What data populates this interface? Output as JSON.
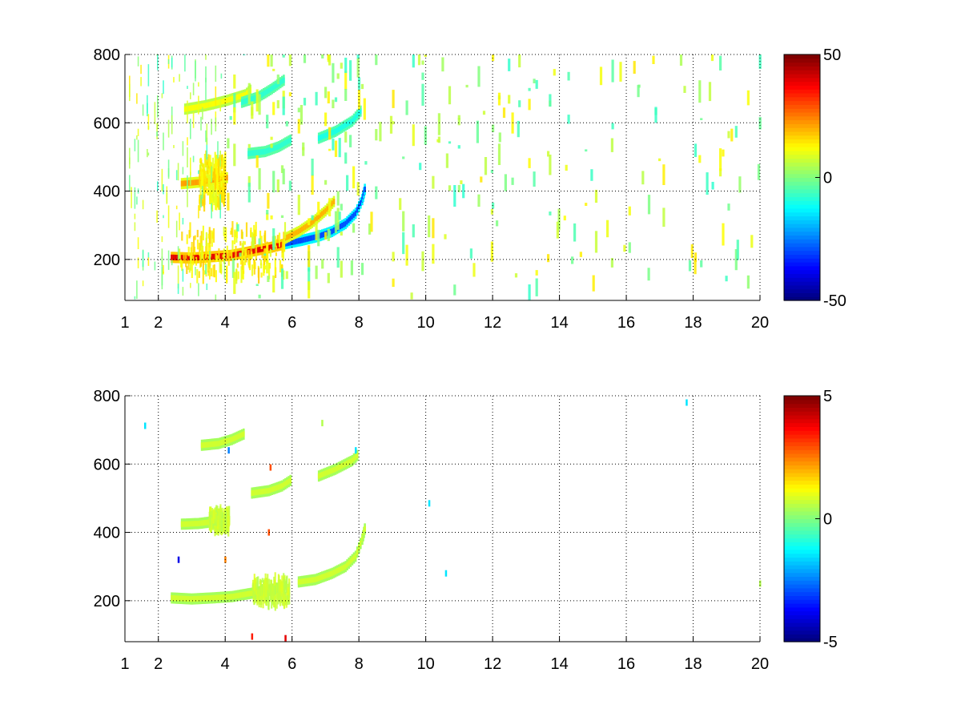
{
  "chart_data": [
    {
      "type": "heatmap",
      "title": "",
      "xlabel": "",
      "ylabel": "",
      "xlim": [
        1,
        20
      ],
      "ylim": [
        80,
        800
      ],
      "x_ticks": [
        1,
        2,
        4,
        6,
        8,
        10,
        12,
        14,
        16,
        18,
        20
      ],
      "x_tick_labels": [
        "1",
        "2",
        "4",
        "6",
        "8",
        "10",
        "12",
        "14",
        "16",
        "18",
        "20"
      ],
      "y_ticks": [
        200,
        400,
        600,
        800
      ],
      "y_tick_labels": [
        "200",
        "400",
        "600",
        "800"
      ],
      "grid": true,
      "colormap": "jet",
      "colorbar": {
        "range": [
          -50,
          50
        ],
        "ticks": [
          50,
          0,
          -50
        ],
        "tick_labels": [
          "50",
          "0",
          "-50"
        ]
      },
      "features": [
        {
          "kind": "curve",
          "value": 40,
          "points": [
            [
              2.4,
              206
            ],
            [
              3.0,
              204
            ],
            [
              3.6,
              208
            ],
            [
              4.2,
              212
            ],
            [
              4.8,
              224
            ],
            [
              5.4,
              236
            ],
            [
              5.8,
              246
            ]
          ]
        },
        {
          "kind": "curve",
          "value": -30,
          "points": [
            [
              5.8,
              246
            ],
            [
              6.3,
              256
            ],
            [
              6.8,
              268
            ],
            [
              7.2,
              282
            ],
            [
              7.6,
              305
            ],
            [
              7.9,
              335
            ],
            [
              8.1,
              375
            ],
            [
              8.2,
              415
            ]
          ]
        },
        {
          "kind": "curve",
          "value": 20,
          "points": [
            [
              5.8,
              262
            ],
            [
              6.2,
              282
            ],
            [
              6.6,
              308
            ],
            [
              7.0,
              342
            ],
            [
              7.3,
              375
            ]
          ]
        },
        {
          "kind": "curve",
          "value": 22,
          "points": [
            [
              2.7,
              422
            ],
            [
              3.2,
              426
            ],
            [
              3.7,
              434
            ],
            [
              4.1,
              440
            ]
          ]
        },
        {
          "kind": "curve",
          "value": -8,
          "points": [
            [
              4.7,
              510
            ],
            [
              5.2,
              516
            ],
            [
              5.6,
              530
            ],
            [
              6.0,
              552
            ]
          ]
        },
        {
          "kind": "curve",
          "value": -10,
          "points": [
            [
              6.8,
              555
            ],
            [
              7.3,
              575
            ],
            [
              7.8,
              605
            ],
            [
              8.1,
              640
            ]
          ]
        },
        {
          "kind": "curve",
          "value": 12,
          "points": [
            [
              2.8,
              640
            ],
            [
              3.4,
              650
            ],
            [
              4.0,
              664
            ],
            [
              4.6,
              682
            ],
            [
              4.8,
              700
            ]
          ]
        },
        {
          "kind": "curve",
          "value": -8,
          "points": [
            [
              4.5,
              660
            ],
            [
              5.0,
              676
            ],
            [
              5.4,
              700
            ],
            [
              5.8,
              728
            ]
          ]
        },
        {
          "kind": "blob",
          "value": 15,
          "x": [
            2.6,
            5.8
          ],
          "y": [
            150,
            290
          ]
        },
        {
          "kind": "blob",
          "value": 15,
          "x": [
            3.2,
            4.0
          ],
          "y": [
            360,
            500
          ]
        },
        {
          "kind": "noise",
          "value_range": [
            -20,
            15
          ],
          "x": [
            1,
            20
          ],
          "y": [
            80,
            800
          ]
        }
      ]
    },
    {
      "type": "heatmap",
      "title": "",
      "xlabel": "",
      "ylabel": "",
      "xlim": [
        1,
        20
      ],
      "ylim": [
        80,
        800
      ],
      "x_ticks": [
        1,
        2,
        4,
        6,
        8,
        10,
        12,
        14,
        16,
        18,
        20
      ],
      "x_tick_labels": [
        "1",
        "2",
        "4",
        "6",
        "8",
        "10",
        "12",
        "14",
        "16",
        "18",
        "20"
      ],
      "y_ticks": [
        200,
        400,
        600,
        800
      ],
      "y_tick_labels": [
        "200",
        "400",
        "600",
        "800"
      ],
      "grid": true,
      "colormap": "jet",
      "colorbar": {
        "range": [
          -5,
          5
        ],
        "ticks": [
          5,
          0,
          -5
        ],
        "tick_labels": [
          "5",
          "0",
          "-5"
        ]
      },
      "features": [
        {
          "kind": "curve",
          "value": 0.8,
          "points": [
            [
              2.4,
              208
            ],
            [
              3.0,
              205
            ],
            [
              3.6,
              208
            ],
            [
              4.2,
              212
            ],
            [
              4.8,
              222
            ],
            [
              5.4,
              232
            ],
            [
              5.8,
              244
            ]
          ]
        },
        {
          "kind": "curve",
          "value": 0.8,
          "points": [
            [
              6.2,
              255
            ],
            [
              6.7,
              262
            ],
            [
              7.2,
              280
            ],
            [
              7.6,
              300
            ],
            [
              7.9,
              330
            ],
            [
              8.1,
              380
            ],
            [
              8.2,
              420
            ]
          ]
        },
        {
          "kind": "curve",
          "value": 0.8,
          "points": [
            [
              2.7,
              424
            ],
            [
              3.2,
              426
            ],
            [
              3.7,
              432
            ],
            [
              4.1,
              438
            ]
          ]
        },
        {
          "kind": "curve",
          "value": 0.8,
          "points": [
            [
              4.8,
              515
            ],
            [
              5.3,
              522
            ],
            [
              5.7,
              536
            ],
            [
              6.0,
              555
            ]
          ]
        },
        {
          "kind": "curve",
          "value": 0.8,
          "points": [
            [
              6.8,
              565
            ],
            [
              7.3,
              585
            ],
            [
              7.8,
              610
            ],
            [
              8.0,
              630
            ]
          ]
        },
        {
          "kind": "curve",
          "value": 0.8,
          "points": [
            [
              3.3,
              655
            ],
            [
              3.8,
              660
            ],
            [
              4.2,
              672
            ],
            [
              4.6,
              690
            ]
          ]
        },
        {
          "kind": "blob",
          "value": 0.8,
          "x": [
            4.8,
            5.9
          ],
          "y": [
            195,
            260
          ]
        },
        {
          "kind": "blob",
          "value": 0.8,
          "x": [
            3.5,
            4.1
          ],
          "y": [
            410,
            460
          ]
        },
        {
          "kind": "specks",
          "points": [
            [
              1.6,
              712,
              -1.5
            ],
            [
              4.1,
              640,
              -2.5
            ],
            [
              4.8,
              95,
              3.5
            ],
            [
              5.3,
              400,
              3
            ],
            [
              5.35,
              590,
              3
            ],
            [
              5.8,
              90,
              4
            ],
            [
              6.9,
              720,
              0.5
            ],
            [
              7.9,
              640,
              -1.5
            ],
            [
              10.1,
              485,
              -1.5
            ],
            [
              10.6,
              280,
              -1.5
            ],
            [
              17.8,
              780,
              -1.5
            ],
            [
              20,
              250,
              0.5
            ],
            [
              4.0,
              320,
              2.5
            ],
            [
              2.6,
              320,
              -4
            ]
          ]
        }
      ]
    }
  ]
}
